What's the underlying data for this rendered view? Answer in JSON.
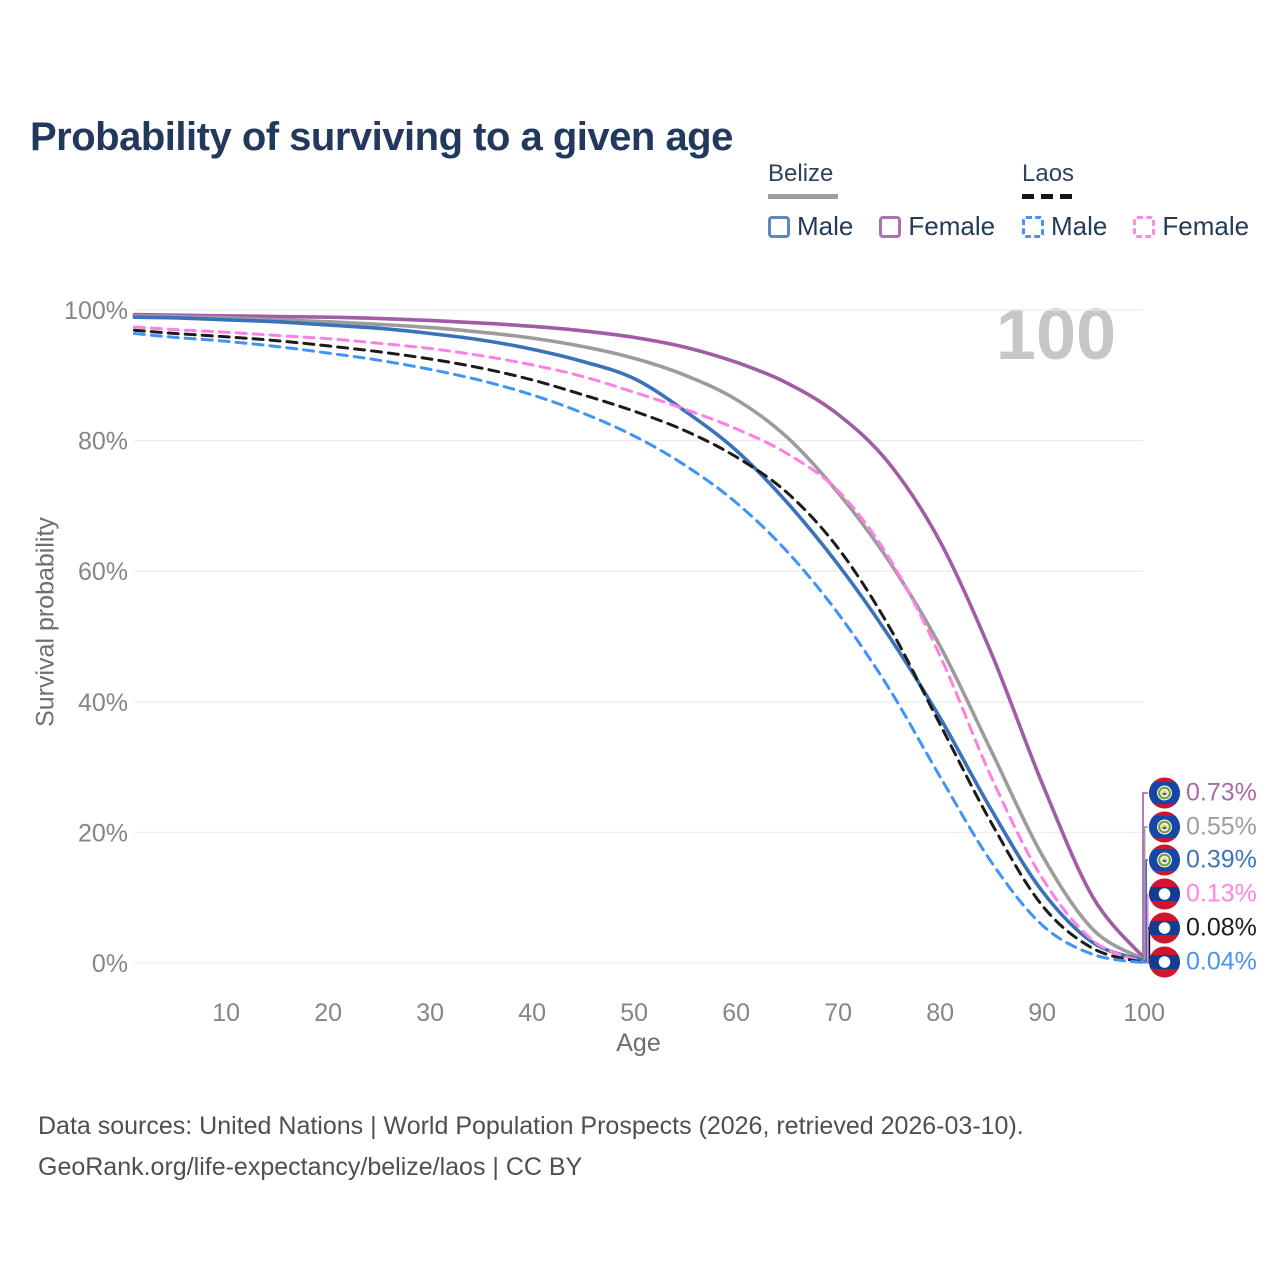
{
  "title": "Probability of surviving to a given age",
  "watermark": "100",
  "legend": {
    "belize": {
      "title": "Belize",
      "male": "Male",
      "female": "Female"
    },
    "laos": {
      "title": "Laos",
      "male": "Male",
      "female": "Female"
    }
  },
  "footer": {
    "line1": "Data sources: United Nations | World Population Prospects (2026, retrieved 2026-03-10).",
    "line2": "GeoRank.org/life-expectancy/belize/laos | CC BY"
  },
  "chart_data": {
    "type": "line",
    "title": "Probability of surviving to a given age",
    "xlabel": "Age",
    "ylabel": "Survival probability",
    "xlim": [
      1,
      100
    ],
    "ylim": [
      0,
      100
    ],
    "grid": "horizontal",
    "legend_position": "top-right",
    "x_ticks": [
      10,
      20,
      30,
      40,
      50,
      60,
      70,
      80,
      90,
      100
    ],
    "y_ticks": [
      {
        "value": 0,
        "label": "0%"
      },
      {
        "value": 20,
        "label": "20%"
      },
      {
        "value": 40,
        "label": "40%"
      },
      {
        "value": 60,
        "label": "60%"
      },
      {
        "value": 80,
        "label": "80%"
      },
      {
        "value": 100,
        "label": "100%"
      }
    ],
    "x": [
      1,
      5,
      10,
      15,
      20,
      25,
      30,
      35,
      40,
      45,
      50,
      55,
      60,
      65,
      70,
      75,
      80,
      85,
      90,
      95,
      100
    ],
    "series": [
      {
        "name": "Belize Female",
        "country": "Belize",
        "color": "#a25ba6",
        "dashed": false,
        "flag": "belize",
        "end_label": "0.73%",
        "label_color": "#a86aa9",
        "values": [
          99.3,
          99.2,
          99.1,
          99.0,
          98.9,
          98.7,
          98.4,
          98.0,
          97.5,
          96.8,
          95.8,
          94.3,
          92.0,
          88.8,
          84.0,
          76.5,
          64.5,
          47.5,
          27.5,
          10.0,
          0.73
        ]
      },
      {
        "name": "Belize (all)",
        "country": "Belize",
        "color": "#9c9c9c",
        "dashed": false,
        "flag": "belize",
        "end_label": "0.55%",
        "label_color": "#9e9e9e",
        "values": [
          99.1,
          99.0,
          98.8,
          98.5,
          98.2,
          97.8,
          97.3,
          96.6,
          95.7,
          94.4,
          92.6,
          90.0,
          86.3,
          80.5,
          72.0,
          61.5,
          48.5,
          32.5,
          16.5,
          5.1,
          0.55
        ]
      },
      {
        "name": "Belize Male",
        "country": "Belize",
        "color": "#3a72b9",
        "dashed": false,
        "flag": "belize",
        "end_label": "0.39%",
        "label_color": "#3f74b8",
        "values": [
          98.9,
          98.8,
          98.5,
          98.2,
          97.7,
          97.2,
          96.4,
          95.4,
          94.0,
          92.1,
          89.5,
          84.5,
          78.5,
          70.5,
          61.0,
          50.0,
          37.5,
          23.5,
          11.0,
          3.1,
          0.39
        ]
      },
      {
        "name": "Laos Female",
        "country": "Laos",
        "color": "#ff80e5",
        "dashed": true,
        "flag": "laos",
        "end_label": "0.13%",
        "label_color": "#ff85e6",
        "values": [
          97.4,
          97.0,
          96.6,
          96.1,
          95.6,
          94.9,
          94.1,
          93.0,
          91.6,
          89.8,
          87.4,
          84.8,
          81.8,
          78.0,
          72.3,
          62.0,
          47.0,
          28.5,
          13.0,
          3.4,
          0.13
        ]
      },
      {
        "name": "Laos (all)",
        "country": "Laos",
        "color": "#1b1b1b",
        "dashed": true,
        "flag": "laos",
        "end_label": "0.08%",
        "label_color": "#1d1d1d",
        "values": [
          96.9,
          96.4,
          95.9,
          95.3,
          94.5,
          93.6,
          92.5,
          91.1,
          89.3,
          87.0,
          84.5,
          81.5,
          77.5,
          72.0,
          63.5,
          51.5,
          36.5,
          21.5,
          8.8,
          2.2,
          0.08
        ]
      },
      {
        "name": "Laos Male",
        "country": "Laos",
        "color": "#4193f7",
        "dashed": true,
        "flag": "laos",
        "end_label": "0.04%",
        "label_color": "#4a92f2",
        "values": [
          96.4,
          95.8,
          95.2,
          94.4,
          93.4,
          92.3,
          90.9,
          89.2,
          87.0,
          84.2,
          80.7,
          76.2,
          70.5,
          63.0,
          53.5,
          42.0,
          28.5,
          15.5,
          5.8,
          1.3,
          0.04
        ]
      }
    ]
  }
}
